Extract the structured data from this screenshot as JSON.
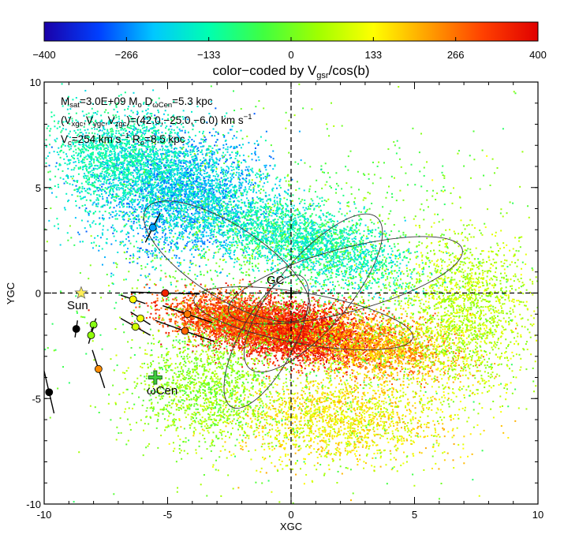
{
  "chart_data": {
    "type": "scatter",
    "xlabel": "XGC",
    "ylabel": "YGC",
    "xlim": [
      -10,
      10
    ],
    "ylim": [
      -10,
      10
    ],
    "x_ticks": [
      "-10",
      "-5",
      "0",
      "5",
      "10"
    ],
    "y_ticks": [
      "-10",
      "-5",
      "0",
      "5",
      "10"
    ],
    "colorbar": {
      "label_main": "color−coded by V",
      "label_sub": "gsr",
      "label_tail": "/cos(b)",
      "range": [
        -400,
        400
      ],
      "ticks": [
        "−400",
        "−266",
        "−133",
        "0",
        "133",
        "266",
        "400"
      ],
      "colormap": [
        "#1a00a8",
        "#0040ff",
        "#00c8ff",
        "#00ffb0",
        "#40ff40",
        "#a0ff00",
        "#ffff00",
        "#ffa000",
        "#ff4000",
        "#e00000"
      ]
    },
    "annotation": {
      "line1": {
        "a": "M",
        "a_sub": "sat",
        "b": "=3.0E+09 M",
        "b_sub": "o",
        "c": "  D",
        "c_sub": "ωCen",
        "d": "=5.3 kpc"
      },
      "line2": {
        "a": "(V",
        "a_sub": "xgc",
        "b": ",V",
        "b_sub": "ygc",
        "c": ",V",
        "c_sub": "zgc",
        "d": ")=(42.0,−25.0,−6.0) km s",
        "d_sup": "−1"
      },
      "line3": {
        "a": "V",
        "a_sub": "c",
        "b": "=254 km s",
        "b_sup": "−1",
        "c": "  R",
        "c_sub": "o",
        "d": "=8.5 kpc"
      }
    },
    "labels": {
      "gc": "GC",
      "sun": "Sun",
      "omega_cen": "ωCen"
    },
    "markers": {
      "sun": {
        "x": -8.5,
        "y": 0.0,
        "color": "#ffee55"
      },
      "gc": {
        "x": 0.0,
        "y": 0.0
      },
      "omega_cen": {
        "x": -5.5,
        "y": -4.0,
        "color": "#3fcc3f"
      }
    },
    "clouds": [
      {
        "cx": -4.5,
        "cy": 4.8,
        "sx": 3.2,
        "sy": 2.6,
        "rot": -10,
        "n": 3500,
        "vmin": -300,
        "vmax": -120
      },
      {
        "cx": -7.0,
        "cy": 6.5,
        "sx": 2.5,
        "sy": 2.0,
        "rot": 0,
        "n": 1500,
        "vmin": -200,
        "vmax": -80
      },
      {
        "cx": 0.5,
        "cy": 2.5,
        "sx": 4.0,
        "sy": 1.5,
        "rot": -20,
        "n": 2500,
        "vmin": -220,
        "vmax": -60
      },
      {
        "cx": 0.0,
        "cy": -1.8,
        "sx": 3.2,
        "sy": 1.2,
        "rot": -8,
        "n": 4500,
        "vmin": 300,
        "vmax": 420
      },
      {
        "cx": -2.5,
        "cy": -1.2,
        "sx": 2.5,
        "sy": 1.0,
        "rot": -10,
        "n": 1800,
        "vmin": 220,
        "vmax": 380
      },
      {
        "cx": 3.5,
        "cy": -2.5,
        "sx": 3.0,
        "sy": 1.4,
        "rot": -10,
        "n": 1800,
        "vmin": 120,
        "vmax": 300
      },
      {
        "cx": 7.0,
        "cy": -1.0,
        "sx": 2.5,
        "sy": 3.5,
        "rot": 0,
        "n": 1800,
        "vmin": 0,
        "vmax": 140
      },
      {
        "cx": 2.0,
        "cy": -6.0,
        "sx": 4.0,
        "sy": 2.0,
        "rot": 0,
        "n": 1800,
        "vmin": 60,
        "vmax": 220
      },
      {
        "cx": -3.5,
        "cy": -4.5,
        "sx": 2.5,
        "sy": 2.5,
        "rot": 0,
        "n": 1300,
        "vmin": -40,
        "vmax": 100
      },
      {
        "cx": 0.0,
        "cy": 0.0,
        "sx": 8.0,
        "sy": 7.0,
        "rot": 0,
        "n": 1800,
        "vmin": -80,
        "vmax": 60
      }
    ],
    "orbit": [
      {
        "cx": -2.6,
        "cy": 1.5,
        "rx": 3.9,
        "ry": 1.7,
        "rot": -33
      },
      {
        "cx": 2.2,
        "cy": 0.6,
        "rx": 4.9,
        "ry": 1.5,
        "rot": 15
      },
      {
        "cx": 0.9,
        "cy": 0.0,
        "rx": 4.0,
        "ry": 1.7,
        "rot": 50
      },
      {
        "cx": -1.0,
        "cy": -2.3,
        "rx": 3.0,
        "ry": 1.3,
        "rot": 62
      },
      {
        "cx": 0.5,
        "cy": -1.2,
        "rx": 4.5,
        "ry": 1.2,
        "rot": -10
      }
    ],
    "stars": [
      {
        "x": -5.6,
        "y": 3.1,
        "v": -250,
        "dx": 0.3,
        "dy": 0.7
      },
      {
        "x": -5.1,
        "y": 0.0,
        "v": 350,
        "dx": 1.4,
        "dy": -0.05
      },
      {
        "x": -6.4,
        "y": -0.3,
        "v": 135,
        "dx": 0.5,
        "dy": -0.2
      },
      {
        "x": -4.2,
        "y": -1.0,
        "v": 260,
        "dx": 1.0,
        "dy": -0.4
      },
      {
        "x": -6.1,
        "y": -1.2,
        "v": 120,
        "dx": 0.4,
        "dy": -0.3
      },
      {
        "x": -6.3,
        "y": -1.6,
        "v": 90,
        "dx": 0.6,
        "dy": -0.4
      },
      {
        "x": -4.3,
        "y": -1.8,
        "v": 280,
        "dx": 1.2,
        "dy": -0.5
      },
      {
        "x": -8.7,
        "y": -1.7,
        "v": null,
        "dx": 0.05,
        "dy": 0.4
      },
      {
        "x": -8.0,
        "y": -1.5,
        "v": 20,
        "dx": 0.1,
        "dy": 0.3
      },
      {
        "x": -8.1,
        "y": -2.0,
        "v": 30,
        "dx": 0.1,
        "dy": 0.4
      },
      {
        "x": -7.8,
        "y": -3.6,
        "v": 240,
        "dx": 0.25,
        "dy": -0.9
      },
      {
        "x": -9.8,
        "y": -4.7,
        "v": null,
        "dx": 0.2,
        "dy": -1.0
      }
    ]
  }
}
